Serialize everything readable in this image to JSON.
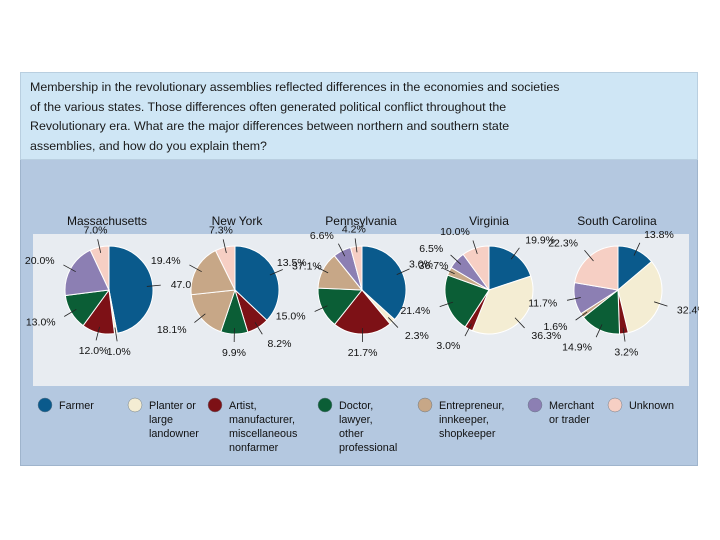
{
  "caption": "Membership in the revolutionary assemblies reflected differences in the economies and societies of the various states. Those differences often generated political conflict throughout the Revolutionary era. What are the major differences between northern and southern state assemblies, and how do you explain them?",
  "chart_data": {
    "type": "pie",
    "title": "",
    "category_colors": [
      "#0a5a8c",
      "#f4edd3",
      "#7d1116",
      "#0b5e36",
      "#c7a787",
      "#8c7fb3",
      "#f6cfc4"
    ],
    "legend": [
      {
        "key": "farmer",
        "lines": [
          "Farmer"
        ]
      },
      {
        "key": "planter",
        "lines": [
          "Planter or",
          "large",
          "landowner"
        ]
      },
      {
        "key": "artist",
        "lines": [
          "Artist,",
          "manufacturer,",
          "miscellaneous",
          "nonfarmer"
        ]
      },
      {
        "key": "doctor",
        "lines": [
          "Doctor,",
          "lawyer,",
          "other",
          "professional"
        ]
      },
      {
        "key": "entrepreneur",
        "lines": [
          "Entrepreneur,",
          "innkeeper,",
          "shopkeeper"
        ]
      },
      {
        "key": "merchant",
        "lines": [
          "Merchant",
          "or trader"
        ]
      },
      {
        "key": "unknown",
        "lines": [
          "Unknown"
        ]
      }
    ],
    "states": [
      {
        "name": "Massachusetts",
        "slices": [
          {
            "cat": "farmer",
            "value": 47.0,
            "label": "47.0%"
          },
          {
            "cat": "planter",
            "value": 1.0,
            "label": "1.0%"
          },
          {
            "cat": "artist",
            "value": 12.0,
            "label": "12.0%"
          },
          {
            "cat": "doctor",
            "value": 13.0,
            "label": "13.0%"
          },
          {
            "cat": "merchant",
            "value": 20.0,
            "label": "20.0%"
          },
          {
            "cat": "unknown",
            "value": 7.0,
            "label": "7.0%"
          }
        ]
      },
      {
        "name": "New York",
        "slices": [
          {
            "cat": "farmer",
            "value": 37.1,
            "label": "37.1%"
          },
          {
            "cat": "artist",
            "value": 8.2,
            "label": "8.2%"
          },
          {
            "cat": "doctor",
            "value": 9.9,
            "label": "9.9%"
          },
          {
            "cat": "entrepreneur",
            "value": 18.1,
            "label": "18.1%"
          },
          {
            "cat": "entrepreneur",
            "value": 19.4,
            "label": "19.4%"
          },
          {
            "cat": "unknown",
            "value": 7.3,
            "label": "7.3%"
          }
        ]
      },
      {
        "name": "Pennsylvania",
        "slices": [
          {
            "cat": "farmer",
            "value": 36.7,
            "label": "36.7%"
          },
          {
            "cat": "planter",
            "value": 2.3,
            "label": "2.3%"
          },
          {
            "cat": "artist",
            "value": 21.7,
            "label": "21.7%"
          },
          {
            "cat": "doctor",
            "value": 15.0,
            "label": "15.0%"
          },
          {
            "cat": "entrepreneur",
            "value": 13.5,
            "label": "13.5%"
          },
          {
            "cat": "merchant",
            "value": 6.6,
            "label": "6.6%"
          },
          {
            "cat": "unknown",
            "value": 4.2,
            "label": "4.2%"
          }
        ]
      },
      {
        "name": "Virginia",
        "slices": [
          {
            "cat": "farmer",
            "value": 19.9,
            "label": "19.9%"
          },
          {
            "cat": "planter",
            "value": 36.3,
            "label": "36.3%"
          },
          {
            "cat": "artist",
            "value": 3.0,
            "label": "3.0%"
          },
          {
            "cat": "doctor",
            "value": 21.4,
            "label": "21.4%"
          },
          {
            "cat": "entrepreneur",
            "value": 3.0,
            "label": "3.0%"
          },
          {
            "cat": "merchant",
            "value": 6.5,
            "label": "6.5%"
          },
          {
            "cat": "unknown",
            "value": 10.0,
            "label": "10.0%"
          }
        ]
      },
      {
        "name": "South Carolina",
        "slices": [
          {
            "cat": "farmer",
            "value": 13.8,
            "label": "13.8%"
          },
          {
            "cat": "planter",
            "value": 32.4,
            "label": "32.4%"
          },
          {
            "cat": "artist",
            "value": 3.2,
            "label": "3.2%"
          },
          {
            "cat": "doctor",
            "value": 14.9,
            "label": "14.9%"
          },
          {
            "cat": "entrepreneur",
            "value": 1.6,
            "label": "1.6%"
          },
          {
            "cat": "merchant",
            "value": 11.7,
            "label": "11.7%"
          },
          {
            "cat": "unknown",
            "value": 22.3,
            "label": "22.3%"
          }
        ]
      }
    ]
  }
}
